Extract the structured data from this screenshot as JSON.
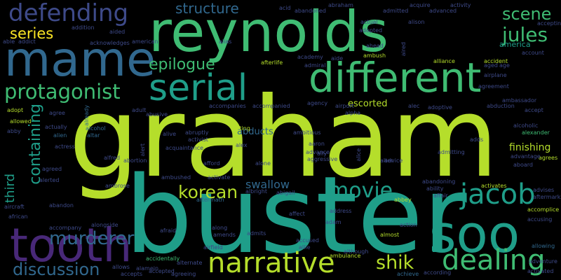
{
  "palette": {
    "background": "#000000",
    "lime": "#b5de2b",
    "green": "#3fbc73",
    "teal": "#1f9e89",
    "blue": "#31688e",
    "slate": "#3e4a89",
    "purple": "#482878",
    "yellow": "#fde725"
  },
  "words": {
    "graham": "graham",
    "buster": "buster",
    "reynolds": "reynolds",
    "mame": "mame",
    "tooth": "tooth",
    "soo": "soo",
    "different": "different",
    "serial": "serial",
    "narrative": "narrative",
    "defending": "defending",
    "protagonist": "protagonist",
    "jacob": "jacob",
    "dealing": "dealing",
    "movie": "movie",
    "containing": "containing",
    "murderer": "murderer",
    "discussion": "discussion",
    "korean": "korean",
    "shik": "shik",
    "epilogue": "epilogue",
    "structure": "structure",
    "jules": "jules",
    "scene": "scene",
    "series": "series",
    "swallow": "swallow",
    "escorted": "escorted",
    "third": "third",
    "finishing": "finishing",
    "abducts": "abducts",
    "america": "america",
    "alexander": "alexander",
    "agrees": "agrees",
    "accomplice": "accomplice",
    "accusing": "accusing",
    "allowing": "allowing",
    "adventure": "adventure",
    "activated": "activated",
    "according": "according",
    "ambulance": "ambulance",
    "almost": "almost",
    "achieve": "achieve",
    "accidentally": "accidentally",
    "aftermath": "aftermath",
    "afford": "afford",
    "alone": "alone",
    "alive": "alive",
    "acting": "acting",
    "ambitious": "ambitious",
    "alien": "alien",
    "alcohol": "alcohol",
    "altar": "altar",
    "actually": "actually",
    "allowed": "allowed",
    "adopt": "adopt",
    "adult": "adult",
    "alec": "alec",
    "adoptive": "adoptive",
    "abduction": "abduction",
    "accept": "accept",
    "ambassador": "ambassador",
    "abandoned": "abandoned",
    "acid": "acid",
    "acquire": "acquire",
    "advanced": "advanced",
    "activity": "activity",
    "accepting": "accepting",
    "addition": "addition",
    "aided": "aided",
    "alias": "alias",
    "acknowledges": "acknowledges",
    "american": "american",
    "able": "able",
    "addict": "addict",
    "afterlife": "afterlife",
    "admiral": "admiral",
    "ambush": "ambush",
    "alliance": "alliance",
    "accident": "accident",
    "airplane": "airplane",
    "age": "age",
    "account": "account",
    "ahead": "ahead",
    "adopted": "adopted",
    "actual": "actual",
    "aide": "aide",
    "already": "already",
    "accompanies": "accompanies",
    "accompanied": "accompanied",
    "agency": "agency",
    "airport": "airport",
    "alpha": "alpha",
    "abby": "abby",
    "actress": "actress",
    "abruptly": "abruptly",
    "activist": "activist",
    "alfred": "alfred",
    "abortion": "abortion",
    "acquaintance": "acquaintance",
    "alert": "alert",
    "alex": "alex",
    "agreed": "agreed",
    "alerted": "alerted",
    "ambrose": "ambrose",
    "ambushed": "ambushed",
    "activate": "activate",
    "advance": "advance",
    "aggressive": "aggressive",
    "alice": "alice",
    "alter": "alter",
    "abigail": "abigail",
    "albright": "albright",
    "aircraft": "aircraft",
    "abandon": "abandon",
    "african": "african",
    "accompany": "accompany",
    "alongside": "alongside",
    "afraid": "afraid",
    "along": "along",
    "amends": "amends",
    "admits": "admits",
    "address": "address",
    "adam": "adam",
    "affect": "affect",
    "accused": "accused",
    "allie": "allie",
    "ally": "ally",
    "although": "although",
    "action": "action",
    "abbey": "abbey",
    "affair": "affair",
    "ability": "ability",
    "activates": "activates",
    "abandoning": "abandoning",
    "admitting": "admitting",
    "advantage": "advantage",
    "aboard": "aboard",
    "advises": "advises",
    "aftermarks": "aftermarks",
    "airfield": "airfield",
    "alternate": "alternate",
    "allows": "allows",
    "accepts": "accepts",
    "agreeing": "agreeing",
    "alamein": "alamein",
    "accepted": "accepted",
    "abraham": "abraham",
    "aired": "aired",
    "alison": "alison",
    "admitted": "admitted",
    "academy": "academy",
    "advice": "advice",
    "aged": "aged",
    "alcoholic": "alcoholic",
    "abusive": "abusive",
    "agree": "agree",
    "aaron": "aaron",
    "agreement": "agreement",
    "adds": "adds"
  }
}
